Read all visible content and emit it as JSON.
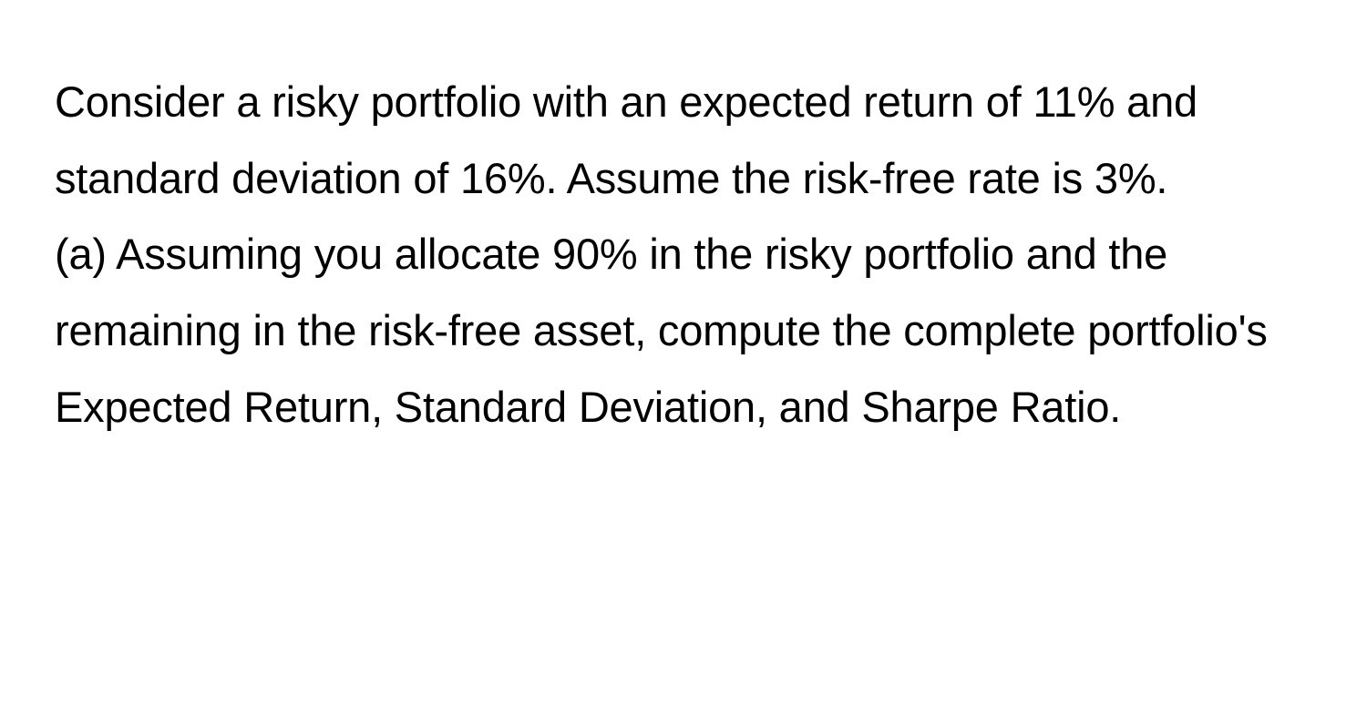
{
  "document": {
    "paragraph1": "Consider a risky portfolio with an expected return of 11% and standard deviation of 16%. Assume the risk-free rate is 3%.",
    "paragraph2": "(a) Assuming you allocate 90% in the risky portfolio and the remaining in the risk-free asset, compute the complete portfolio's Expected Return, Standard Deviation, and Sharpe Ratio."
  },
  "styling": {
    "background_color": "#ffffff",
    "text_color": "#000000",
    "font_size": 47,
    "line_height": 1.78,
    "font_weight": 400,
    "font_family": "-apple-system, BlinkMacSystemFont, Segoe UI, Helvetica, Arial, sans-serif"
  }
}
